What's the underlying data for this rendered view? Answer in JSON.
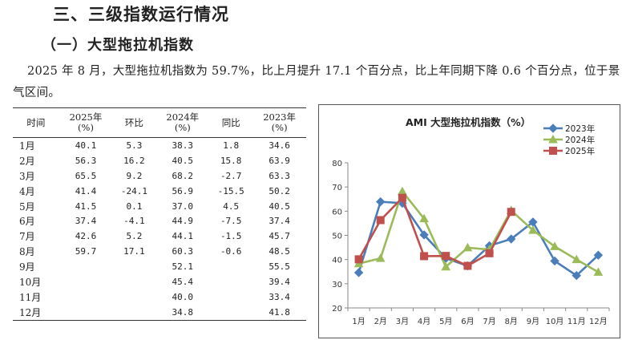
{
  "heading": "三、三级指数运行情况",
  "subheading": "（一）大型拖拉机指数",
  "paragraph": "2025 年 8 月，大型拖拉机指数为 59.7%，比上月提升 17.1 个百分点，比上年同期下降 0.6 个百分点，位于景气区间。",
  "table": {
    "headers": {
      "month": "时间",
      "y2025_year": "2025年",
      "y2025_unit": "(%)",
      "mom": "环比",
      "y2024_year": "2024年",
      "y2024_unit": "(%)",
      "yoy": "同比",
      "y2023_year": "2023年",
      "y2023_unit": "(%)"
    },
    "rows": [
      {
        "month": "1月",
        "y2025": "40.1",
        "mom": "5.3",
        "y2024": "38.3",
        "yoy": "1.8",
        "y2023": "34.6"
      },
      {
        "month": "2月",
        "y2025": "56.3",
        "mom": "16.2",
        "y2024": "40.5",
        "yoy": "15.8",
        "y2023": "63.9"
      },
      {
        "month": "3月",
        "y2025": "65.5",
        "mom": "9.2",
        "y2024": "68.2",
        "yoy": "-2.7",
        "y2023": "63.3"
      },
      {
        "month": "4月",
        "y2025": "41.4",
        "mom": "-24.1",
        "y2024": "56.9",
        "yoy": "-15.5",
        "y2023": "50.2"
      },
      {
        "month": "5月",
        "y2025": "41.5",
        "mom": "0.1",
        "y2024": "37.0",
        "yoy": "4.5",
        "y2023": "40.5"
      },
      {
        "month": "6月",
        "y2025": "37.4",
        "mom": "-4.1",
        "y2024": "44.9",
        "yoy": "-7.5",
        "y2023": "37.4"
      },
      {
        "month": "7月",
        "y2025": "42.6",
        "mom": "5.2",
        "y2024": "44.1",
        "yoy": "-1.5",
        "y2023": "45.7"
      },
      {
        "month": "8月",
        "y2025": "59.7",
        "mom": "17.1",
        "y2024": "60.3",
        "yoy": "-0.6",
        "y2023": "48.5"
      },
      {
        "month": "9月",
        "y2025": "",
        "mom": "",
        "y2024": "52.1",
        "yoy": "",
        "y2023": "55.5"
      },
      {
        "month": "10月",
        "y2025": "",
        "mom": "",
        "y2024": "45.4",
        "yoy": "",
        "y2023": "39.4"
      },
      {
        "month": "11月",
        "y2025": "",
        "mom": "",
        "y2024": "40.0",
        "yoy": "",
        "y2023": "33.4"
      },
      {
        "month": "12月",
        "y2025": "",
        "mom": "",
        "y2024": "34.8",
        "yoy": "",
        "y2023": "41.8"
      }
    ]
  },
  "chart_data": {
    "type": "line",
    "title": "AMI 大型拖拉机指数（%）",
    "categories": [
      "1月",
      "2月",
      "3月",
      "4月",
      "5月",
      "6月",
      "7月",
      "8月",
      "9月",
      "10月",
      "11月",
      "12月"
    ],
    "ylim": [
      20,
      80
    ],
    "yticks": [
      20,
      30,
      40,
      50,
      60,
      70,
      80
    ],
    "grid": false,
    "legend": "top-right",
    "series": [
      {
        "name": "2023年",
        "color": "#4a7ebb",
        "marker": "diamond",
        "values": [
          34.6,
          63.9,
          63.3,
          50.2,
          40.5,
          37.4,
          45.7,
          48.5,
          55.5,
          39.4,
          33.4,
          41.8
        ]
      },
      {
        "name": "2024年",
        "color": "#9bbb59",
        "marker": "triangle",
        "values": [
          38.3,
          40.5,
          68.2,
          56.9,
          37.0,
          44.9,
          44.1,
          60.3,
          52.1,
          45.4,
          40.0,
          34.8
        ]
      },
      {
        "name": "2025年",
        "color": "#c0504d",
        "marker": "square",
        "values": [
          40.1,
          56.3,
          65.5,
          41.4,
          41.5,
          37.4,
          42.6,
          59.7,
          null,
          null,
          null,
          null
        ]
      }
    ]
  }
}
